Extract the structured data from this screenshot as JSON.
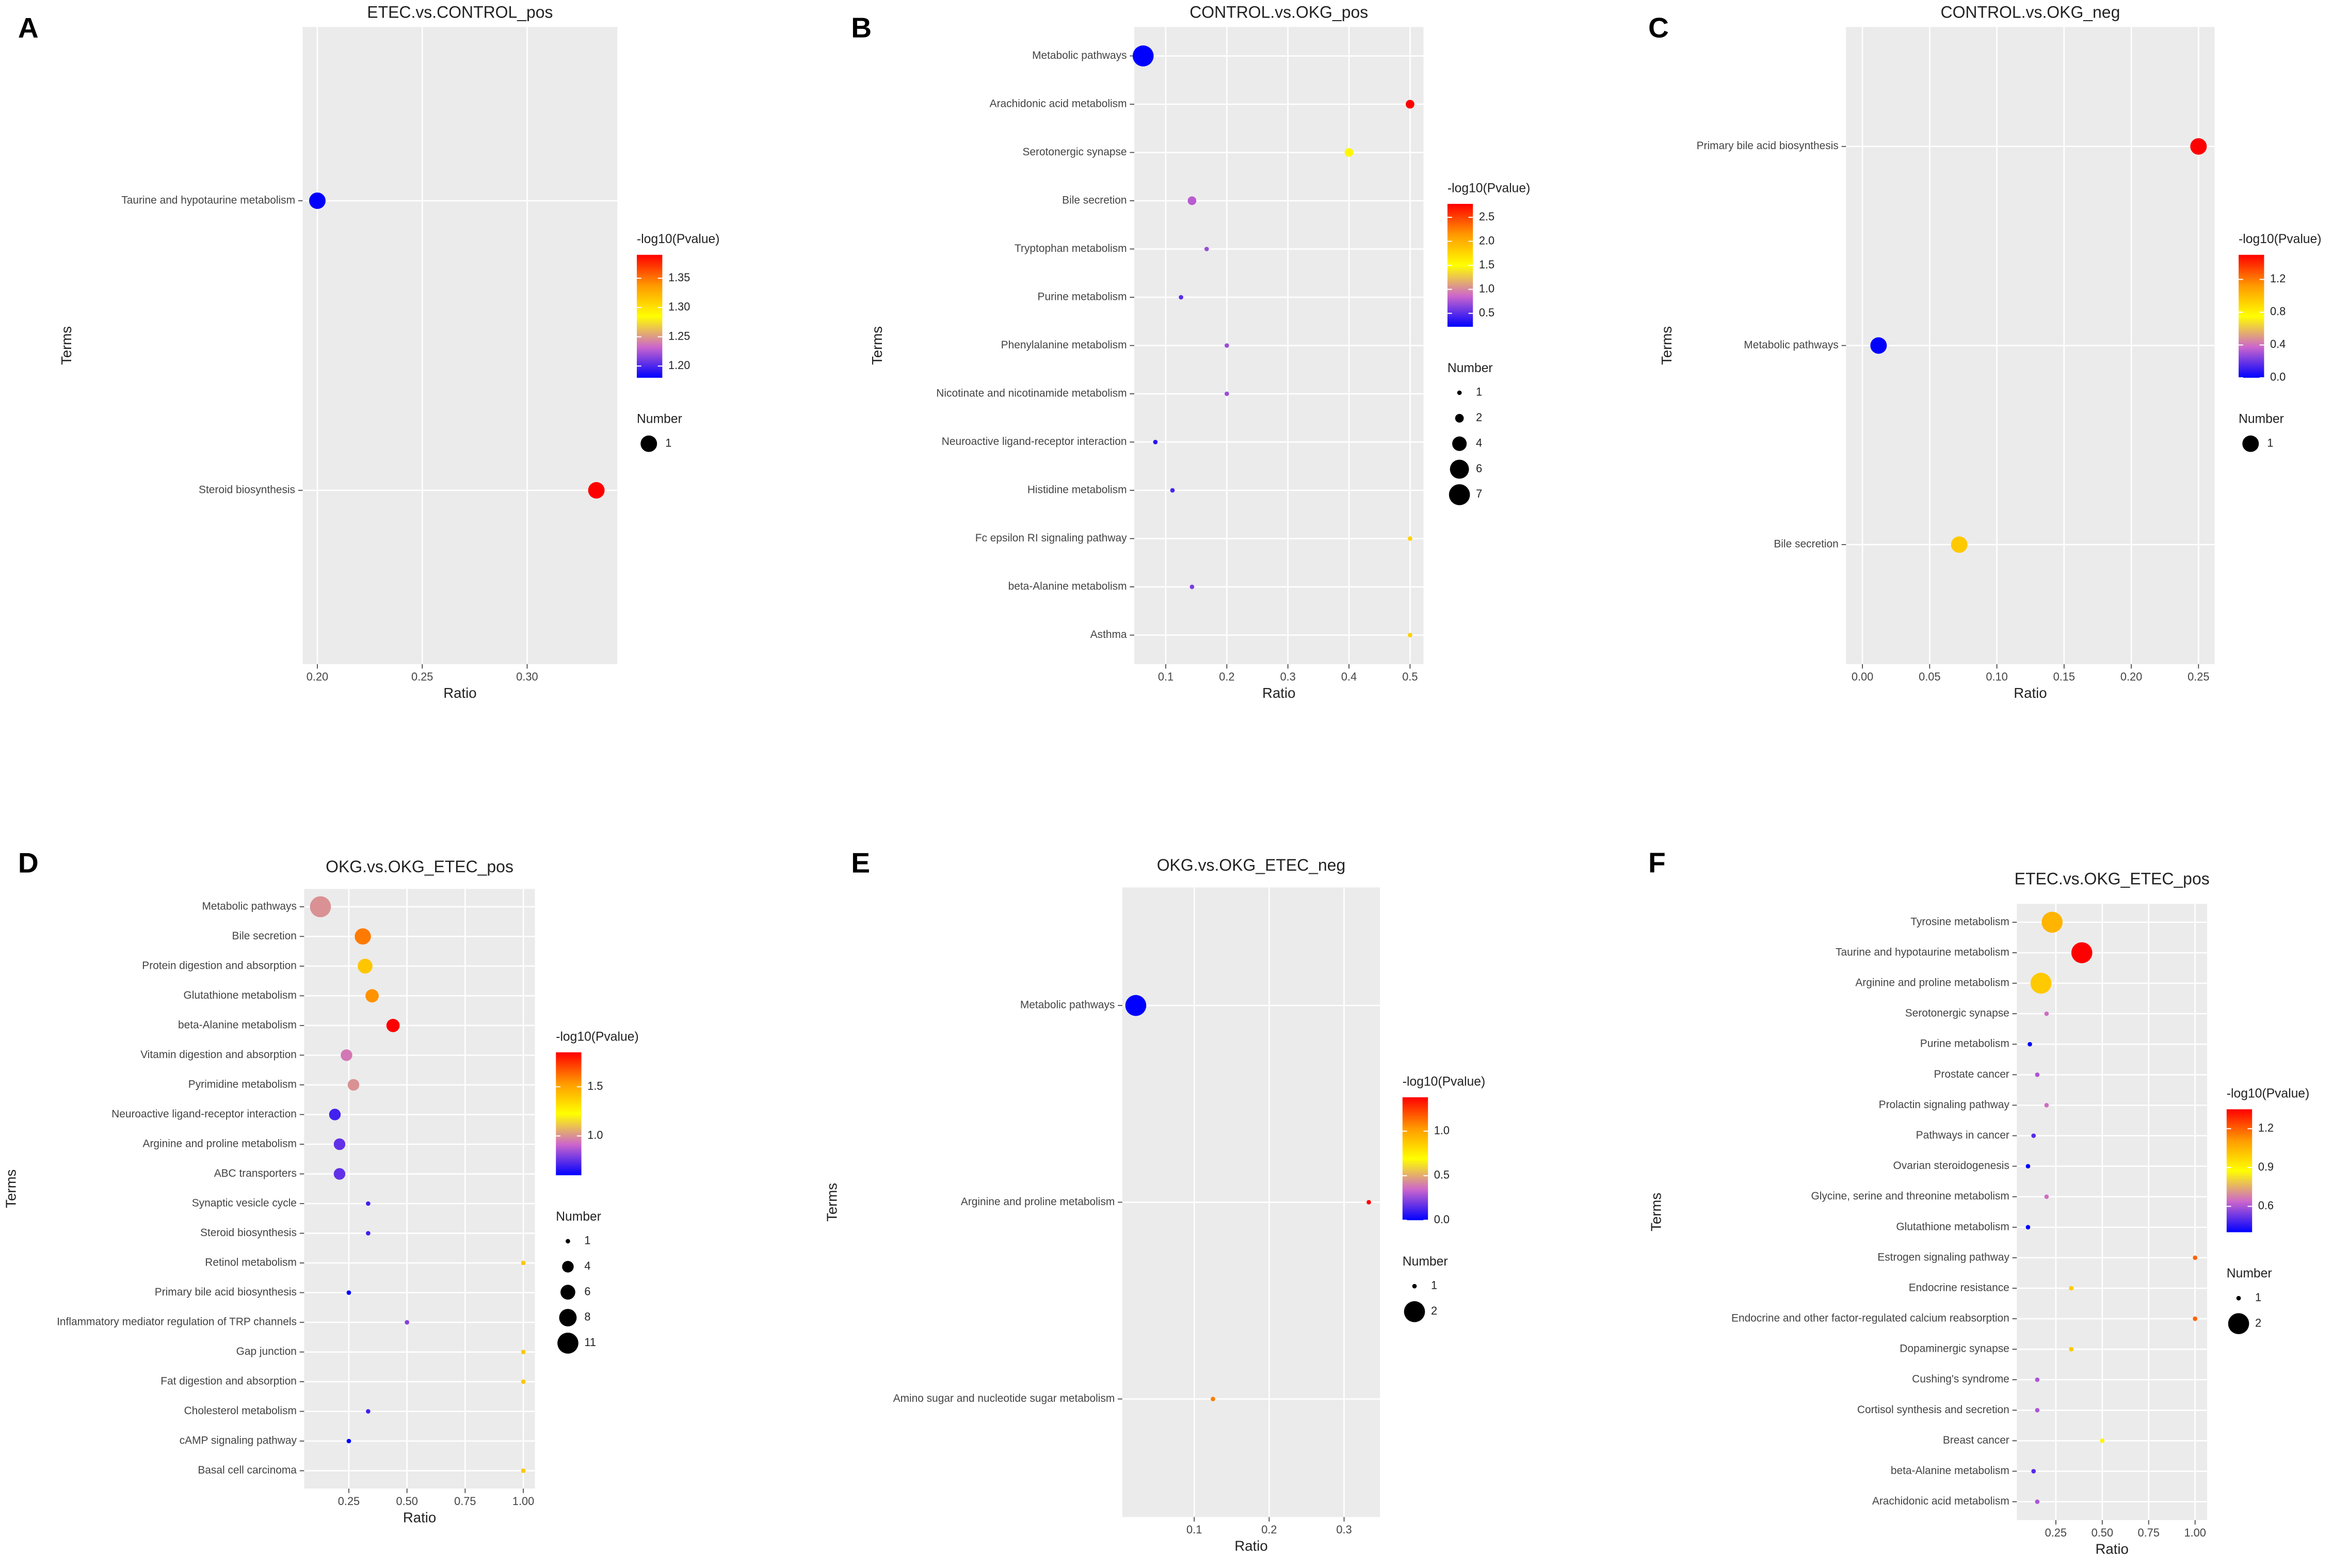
{
  "chart_data": [
    {
      "type": "scatter",
      "letter": "A",
      "title": "ETEC.vs.CONTROL_pos",
      "xlabel": "Ratio",
      "ylabel": "Terms",
      "categories": [
        "Taurine and hypotaurine metabolism",
        "Steroid biosynthesis"
      ],
      "x": [
        0.2,
        0.333
      ],
      "pvalue": [
        1.18,
        1.39
      ],
      "number": [
        1,
        1
      ],
      "xlim": [
        0.193,
        0.343
      ],
      "xticks": [
        {
          "value": 0.2,
          "label": "0.20"
        },
        0.25,
        {
          "value": 0.3,
          "label": "0.30"
        }
      ],
      "color_title": "-log10(Pvalue)",
      "clim": [
        1.18,
        1.39
      ],
      "cticks": [
        {
          "value": 1.2,
          "label": "1.20"
        },
        1.25,
        {
          "value": 1.3,
          "label": "1.30"
        },
        1.35
      ],
      "size_title": "Number",
      "size_ticks": [
        1
      ],
      "colorscale": [
        "#0000ff",
        "#cc66cc",
        "#ffff00",
        "#ff9900",
        "#ff0000"
      ],
      "grid": true
    },
    {
      "type": "scatter",
      "letter": "B",
      "title": "CONTROL.vs.OKG_pos",
      "xlabel": "Ratio",
      "ylabel": "Terms",
      "categories": [
        "Metabolic pathways",
        "Arachidonic acid metabolism",
        "Serotonergic synapse",
        "Bile secretion",
        "Tryptophan metabolism",
        "Purine metabolism",
        "Phenylalanine metabolism",
        "Nicotinate and nicotinamide metabolism",
        "Neuroactive ligand-receptor interaction",
        "Histidine metabolism",
        "Fc epsilon RI signaling pathway",
        "beta-Alanine metabolism",
        "Asthma"
      ],
      "x": [
        0.063,
        0.5,
        0.4,
        0.143,
        0.167,
        0.125,
        0.2,
        0.2,
        0.083,
        0.111,
        0.5,
        0.143,
        0.5
      ],
      "pvalue": [
        0.22,
        2.78,
        1.55,
        0.8,
        0.7,
        0.5,
        0.7,
        0.7,
        0.35,
        0.45,
        1.8,
        0.6,
        1.8
      ],
      "number": [
        7,
        2,
        2,
        2,
        1,
        1,
        1,
        1,
        1,
        1,
        1,
        1,
        1
      ],
      "xlim": [
        0.0485,
        0.522
      ],
      "xticks": [
        0.1,
        0.2,
        0.3,
        0.4,
        0.5
      ],
      "color_title": "-log10(Pvalue)",
      "clim": [
        0.22,
        2.78
      ],
      "cticks": [
        0.5,
        {
          "value": 1,
          "label": "1.0"
        },
        1.5,
        {
          "value": 2,
          "label": "2.0"
        },
        2.5
      ],
      "size_title": "Number",
      "size_ticks": [
        1,
        2,
        4,
        6,
        7
      ],
      "colorscale": [
        "#0000ff",
        "#cc66cc",
        "#ffff00",
        "#ff9900",
        "#ff0000"
      ],
      "grid": true
    },
    {
      "type": "scatter",
      "letter": "C",
      "title": "CONTROL.vs.OKG_neg",
      "xlabel": "Ratio",
      "ylabel": "Terms",
      "categories": [
        "Primary bile acid biosynthesis",
        "Metabolic pathways",
        "Bile secretion"
      ],
      "x": [
        0.25,
        0.012,
        0.072
      ],
      "pvalue": [
        1.5,
        0,
        0.95
      ],
      "number": [
        1,
        1,
        1
      ],
      "xlim": [
        -0.0122,
        0.262
      ],
      "xticks": [
        {
          "value": 0,
          "label": "0.00"
        },
        0.05,
        {
          "value": 0.1,
          "label": "0.10"
        },
        0.15,
        {
          "value": 0.2,
          "label": "0.20"
        },
        0.25
      ],
      "color_title": "-log10(Pvalue)",
      "clim": [
        0,
        1.5
      ],
      "cticks": [
        {
          "value": 0,
          "label": "0.0"
        },
        0.4,
        0.8,
        1.2
      ],
      "size_title": "Number",
      "size_ticks": [
        1
      ],
      "colorscale": [
        "#0000ff",
        "#cc66cc",
        "#ffff00",
        "#ff9900",
        "#ff0000"
      ],
      "grid": true
    },
    {
      "type": "scatter",
      "letter": "D",
      "title": "OKG.vs.OKG_ETEC_pos",
      "xlabel": "Ratio",
      "ylabel": "Terms",
      "categories": [
        "Metabolic pathways",
        "Bile secretion",
        "Protein digestion and absorption",
        "Glutathione metabolism",
        "beta-Alanine metabolism",
        "Vitamin digestion and absorption",
        "Pyrimidine metabolism",
        "Neuroactive ligand-receptor interaction",
        "Arginine and proline metabolism",
        "ABC transporters",
        "Synaptic vesicle cycle",
        "Steroid biosynthesis",
        "Retinol metabolism",
        "Primary bile acid biosynthesis",
        "Inflammatory mediator regulation of TRP channels",
        "Gap junction",
        "Fat digestion and absorption",
        "Cholesterol metabolism",
        "cAMP signaling pathway",
        "Basal cell carcinoma"
      ],
      "x": [
        0.128,
        0.31,
        0.32,
        0.35,
        0.44,
        0.24,
        0.27,
        0.19,
        0.21,
        0.21,
        0.333,
        0.333,
        1,
        0.25,
        0.5,
        1,
        1,
        0.333,
        0.25,
        1
      ],
      "pvalue": [
        1.0,
        1.6,
        1.4,
        1.55,
        1.85,
        0.95,
        1.0,
        0.7,
        0.75,
        0.75,
        0.7,
        0.7,
        1.4,
        0.6,
        0.8,
        1.4,
        1.4,
        0.7,
        0.6,
        1.4
      ],
      "number": [
        11,
        7,
        6,
        5,
        5,
        4,
        4,
        4,
        4,
        4,
        1,
        1,
        1,
        1,
        1,
        1,
        1,
        1,
        1,
        1
      ],
      "xlim": [
        0.058,
        1.05
      ],
      "xticks": [
        0.25,
        {
          "value": 0.5,
          "label": "0.50"
        },
        0.75,
        {
          "value": 1,
          "label": "1.00"
        }
      ],
      "color_title": "-log10(Pvalue)",
      "clim": [
        0.6,
        1.85
      ],
      "cticks": [
        {
          "value": 1,
          "label": "1.0"
        },
        1.5
      ],
      "size_title": "Number",
      "size_ticks": [
        1,
        4,
        6,
        8,
        11
      ],
      "colorscale": [
        "#0000ff",
        "#cc66cc",
        "#ffff00",
        "#ff9900",
        "#ff0000"
      ],
      "grid": true
    },
    {
      "type": "scatter",
      "letter": "E",
      "title": "OKG.vs.OKG_ETEC_neg",
      "xlabel": "Ratio",
      "ylabel": "Terms",
      "categories": [
        "Metabolic pathways",
        "Arginine and proline metabolism",
        "Amino sugar and nucleotide sugar metabolism"
      ],
      "x": [
        0.022,
        0.333,
        0.125
      ],
      "pvalue": [
        0,
        1.38,
        1.1
      ],
      "number": [
        2,
        1,
        1
      ],
      "xlim": [
        0.004,
        0.348
      ],
      "xticks": [
        0.1,
        0.2,
        0.3
      ],
      "color_title": "-log10(Pvalue)",
      "clim": [
        0,
        1.38
      ],
      "cticks": [
        {
          "value": 0,
          "label": "0.0"
        },
        0.5,
        {
          "value": 1,
          "label": "1.0"
        }
      ],
      "size_title": "Number",
      "size_ticks": [
        1,
        2
      ],
      "colorscale": [
        "#0000ff",
        "#cc66cc",
        "#ffff00",
        "#ff9900",
        "#ff0000"
      ],
      "grid": true
    },
    {
      "type": "scatter",
      "letter": "F",
      "title": "ETEC.vs.OKG_ETEC_pos",
      "xlabel": "Ratio",
      "ylabel": "Terms",
      "categories": [
        "Tyrosine metabolism",
        "Taurine and hypotaurine metabolism",
        "Arginine and proline metabolism",
        "Serotonergic synapse",
        "Purine metabolism",
        "Prostate cancer",
        "Prolactin signaling pathway",
        "Pathways in cancer",
        "Ovarian steroidogenesis",
        "Glycine, serine and threonine metabolism",
        "Glutathione metabolism",
        "Estrogen signaling pathway",
        "Endocrine resistance",
        "Endocrine and other factor-regulated calcium reabsorption",
        "Dopaminergic synapse",
        "Cushing's syndrome",
        "Cortisol synthesis and secretion",
        "Breast cancer",
        "beta-Alanine metabolism",
        "Arachidonic acid metabolism"
      ],
      "x": [
        0.23,
        0.39,
        0.17,
        0.2,
        0.11,
        0.15,
        0.2,
        0.13,
        0.1,
        0.2,
        0.1,
        1,
        0.333,
        1,
        0.333,
        0.15,
        0.15,
        0.5,
        0.13,
        0.15
      ],
      "pvalue": [
        1.05,
        1.35,
        1.0,
        0.65,
        0.4,
        0.6,
        0.65,
        0.5,
        0.4,
        0.65,
        0.4,
        1.2,
        1.0,
        1.2,
        1.0,
        0.6,
        0.6,
        0.9,
        0.5,
        0.6
      ],
      "number": [
        2,
        2,
        2,
        1,
        1,
        1,
        1,
        1,
        1,
        1,
        1,
        1,
        1,
        1,
        1,
        1,
        1,
        1,
        1,
        1
      ],
      "xlim": [
        0.04,
        1.065
      ],
      "xticks": [
        0.25,
        {
          "value": 0.5,
          "label": "0.50"
        },
        0.75,
        {
          "value": 1,
          "label": "1.00"
        }
      ],
      "color_title": "-log10(Pvalue)",
      "clim": [
        0.4,
        1.35
      ],
      "cticks": [
        0.6,
        0.9,
        1.2
      ],
      "size_title": "Number",
      "size_ticks": [
        1,
        2
      ],
      "colorscale": [
        "#0000ff",
        "#cc66cc",
        "#ffff00",
        "#ff9900",
        "#ff0000"
      ],
      "grid": true
    }
  ]
}
